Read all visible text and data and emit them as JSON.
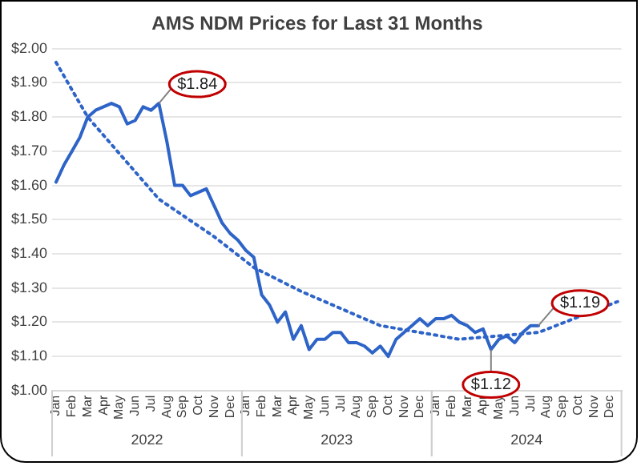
{
  "chart_data": {
    "type": "line",
    "title": "AMS NDM Prices for Last 31 Months",
    "categories": [
      "Jan",
      null,
      "Feb",
      null,
      "Mar",
      null,
      "Apr",
      null,
      "May",
      null,
      "Jun",
      null,
      "Jul",
      null,
      "Aug",
      null,
      "Sep",
      null,
      "Oct",
      null,
      "Nov",
      null,
      "Dec",
      null,
      "Jan",
      null,
      "Feb",
      null,
      "Mar",
      null,
      "Apr",
      null,
      "May",
      null,
      "Jun",
      null,
      "Jul",
      null,
      "Aug",
      null,
      "Sep",
      null,
      "Oct",
      null,
      "Nov",
      null,
      "Dec",
      null,
      "Jan",
      null,
      "Feb",
      null,
      "Mar",
      null,
      "Apr",
      null,
      "May",
      null,
      "Jun",
      null,
      "Jul",
      null,
      "Aug",
      null,
      "Sep",
      null,
      "Oct",
      null,
      "Nov",
      null,
      "Dec",
      null
    ],
    "ylim": [
      1,
      2
    ],
    "yticks": [
      {
        "value": 1,
        "label": "$1.00"
      },
      {
        "value": 1.1,
        "label": "$1.10"
      },
      {
        "value": 1.2,
        "label": "$1.20"
      },
      {
        "value": 1.3,
        "label": "$1.30"
      },
      {
        "value": 1.4,
        "label": "$1.40"
      },
      {
        "value": 1.5,
        "label": "$1.50"
      },
      {
        "value": 1.6,
        "label": "$1.60"
      },
      {
        "value": 1.7,
        "label": "$1.70"
      },
      {
        "value": 1.8,
        "label": "$1.80"
      },
      {
        "value": 1.9,
        "label": "$1.90"
      },
      {
        "value": 2,
        "label": "$2.00"
      }
    ],
    "grid": "y",
    "legend": false,
    "marker": "none",
    "series": [
      {
        "color": "#2e64c8",
        "line_style": "solid",
        "values": [
          1.61,
          1.66,
          1.7,
          1.74,
          1.8,
          1.82,
          1.83,
          1.84,
          1.83,
          1.78,
          1.79,
          1.83,
          1.82,
          1.84,
          1.73,
          1.6,
          1.6,
          1.57,
          1.58,
          1.59,
          1.54,
          1.49,
          1.46,
          1.44,
          1.41,
          1.39,
          1.28,
          1.25,
          1.2,
          1.23,
          1.15,
          1.19,
          1.12,
          1.15,
          1.15,
          1.17,
          1.17,
          1.14,
          1.14,
          1.13,
          1.11,
          1.13,
          1.1,
          1.15,
          1.17,
          1.19,
          1.21,
          1.19,
          1.21,
          1.21,
          1.22,
          1.2,
          1.19,
          1.17,
          1.18,
          1.12,
          1.15,
          1.16,
          1.14,
          1.17,
          1.19,
          1.19,
          null,
          null,
          null,
          null,
          null,
          null,
          null,
          null,
          null,
          null
        ],
        "value_labels": [
          null,
          null,
          null,
          null,
          null,
          null,
          null,
          null,
          null,
          null,
          null,
          null,
          null,
          "$1.84",
          null,
          null,
          null,
          null,
          null,
          null,
          null,
          null,
          null,
          null,
          null,
          null,
          null,
          null,
          null,
          null,
          null,
          null,
          null,
          null,
          null,
          null,
          null,
          null,
          null,
          null,
          null,
          null,
          null,
          null,
          null,
          null,
          null,
          null,
          null,
          null,
          null,
          null,
          null,
          null,
          null,
          "$1.12",
          null,
          null,
          null,
          null,
          null,
          "$1.19",
          null,
          null,
          null,
          null,
          null,
          null,
          null,
          null,
          null,
          null
        ]
      },
      {
        "color": "#2e64c8",
        "line_style": "dotted",
        "values": [
          1.96,
          null,
          null,
          null,
          1.8,
          null,
          null,
          null,
          null,
          null,
          null,
          null,
          null,
          1.56,
          null,
          null,
          null,
          null,
          null,
          null,
          1.45,
          null,
          null,
          null,
          null,
          1.36,
          null,
          null,
          null,
          null,
          null,
          1.29,
          null,
          null,
          null,
          null,
          null,
          null,
          null,
          null,
          null,
          1.19,
          null,
          null,
          null,
          null,
          null,
          null,
          null,
          null,
          null,
          1.15,
          null,
          null,
          null,
          null,
          null,
          null,
          null,
          null,
          null,
          1.17,
          null,
          null,
          null,
          null,
          null,
          null,
          null,
          null,
          null,
          1.26
        ]
      }
    ],
    "annotations": [
      "2022",
      "2023",
      "2024"
    ]
  }
}
